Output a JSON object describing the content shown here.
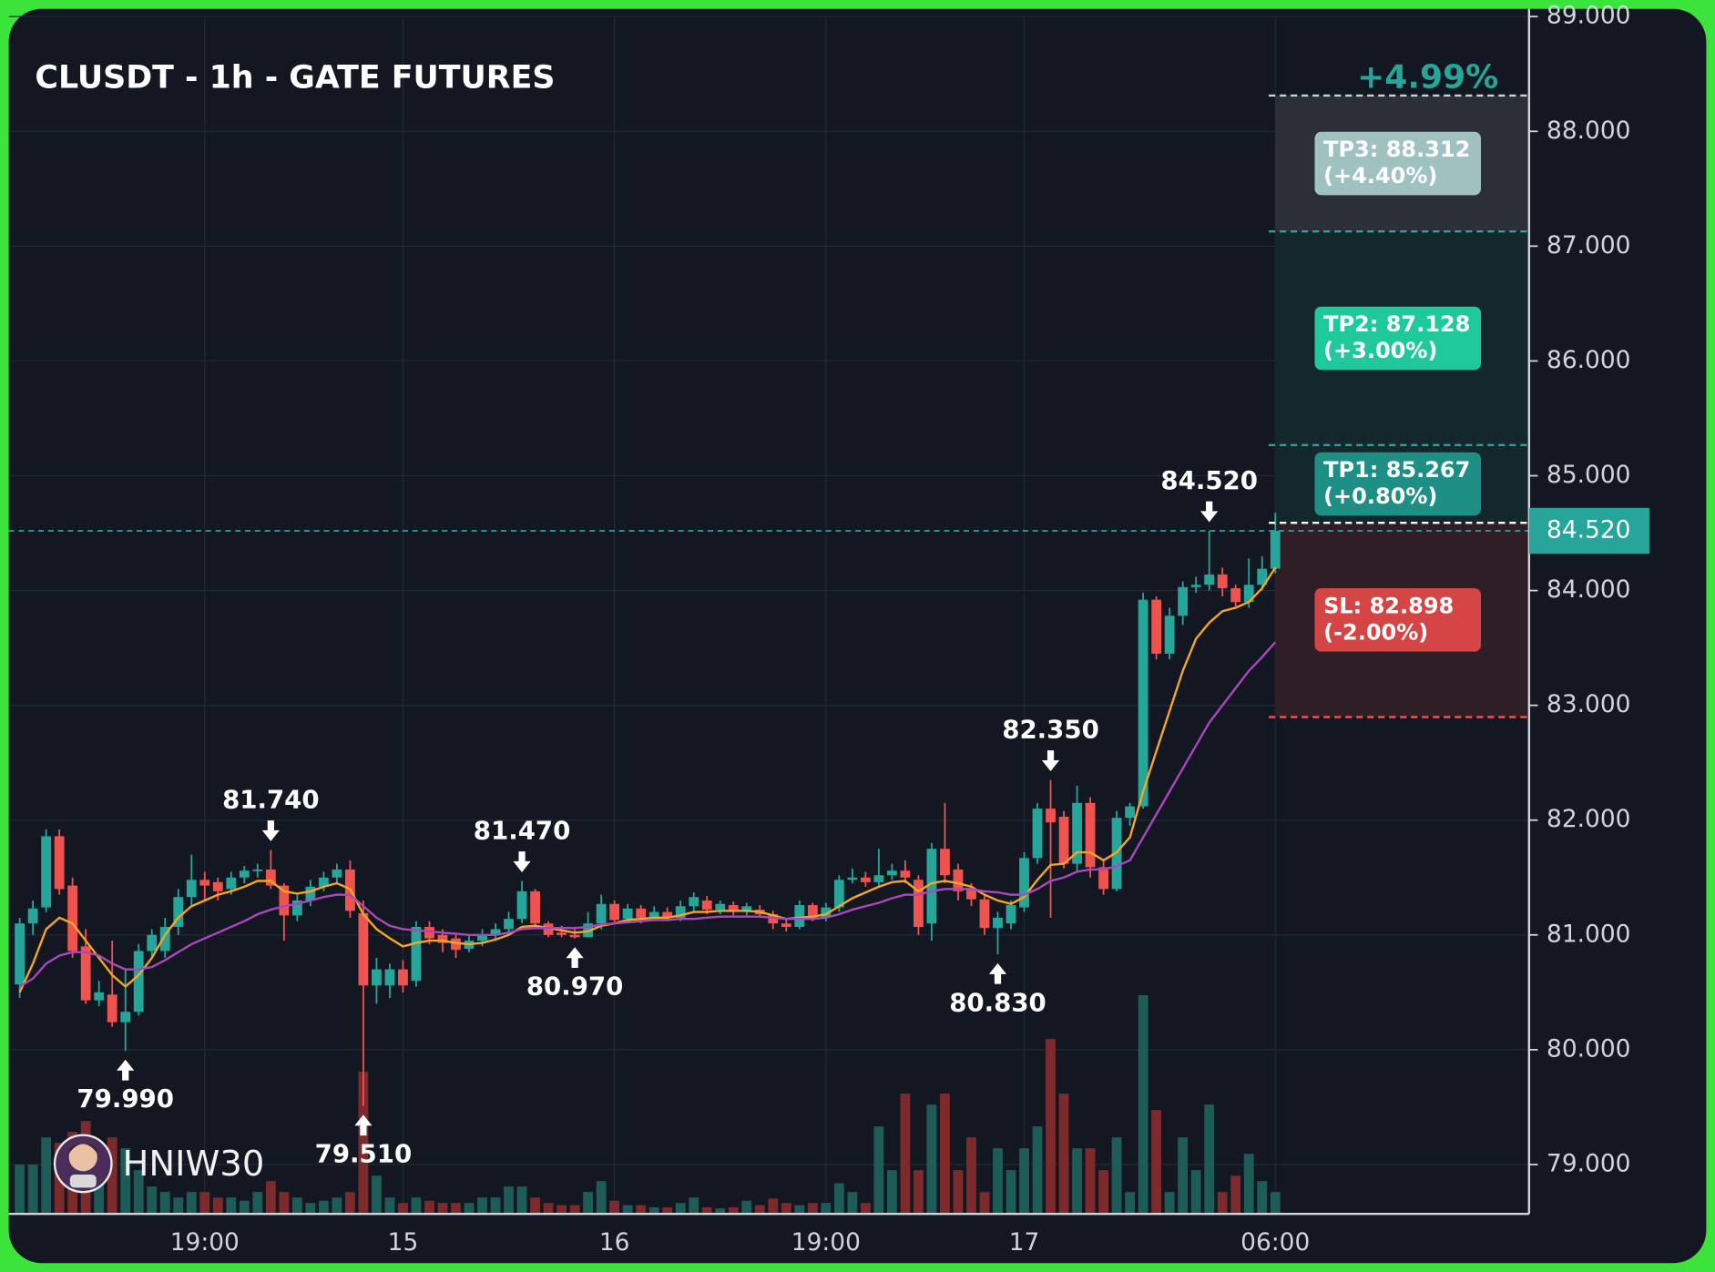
{
  "chart_data": {
    "type": "candlestick",
    "title": "CLUSDT - 1h - GATE FUTURES",
    "watermark": "HNIW30",
    "gain_label": "+4.99%",
    "categories": [
      null,
      null,
      null,
      null,
      null,
      null,
      null,
      null,
      null,
      null,
      null,
      null,
      null,
      null,
      "19:00",
      null,
      null,
      null,
      null,
      null,
      null,
      null,
      null,
      null,
      null,
      null,
      null,
      null,
      null,
      "15",
      null,
      null,
      null,
      null,
      null,
      null,
      null,
      null,
      null,
      null,
      null,
      null,
      null,
      null,
      null,
      "16",
      null,
      null,
      null,
      null,
      null,
      null,
      null,
      null,
      null,
      null,
      null,
      null,
      null,
      null,
      null,
      "19:00",
      null,
      null,
      null,
      null,
      null,
      null,
      null,
      null,
      null,
      null,
      null,
      null,
      null,
      null,
      "17",
      null,
      null,
      null,
      null,
      null,
      null,
      null,
      null,
      null,
      null,
      null,
      null,
      null,
      null,
      null,
      null,
      null,
      null,
      "06:00"
    ],
    "open": [
      80.57,
      81.1,
      81.24,
      81.86,
      81.43,
      80.9,
      80.43,
      80.48,
      80.24,
      80.33,
      80.86,
      80.86,
      81.07,
      81.33,
      81.48,
      81.46,
      81.4,
      81.5,
      81.56,
      81.57,
      81.43,
      81.17,
      81.3,
      81.42,
      81.5,
      81.57,
      81.19,
      80.56,
      80.56,
      80.7,
      80.6,
      81.07,
      81.0,
      80.97,
      80.88,
      80.95,
      81.0,
      81.05,
      81.14,
      81.38,
      81.1,
      81.02,
      81.0,
      80.98,
      81.1,
      81.27,
      81.14,
      81.23,
      81.15,
      81.2,
      81.15,
      81.25,
      81.3,
      81.22,
      81.26,
      81.2,
      81.22,
      81.18,
      81.1,
      81.07,
      81.26,
      81.15,
      81.24,
      81.48,
      81.5,
      81.46,
      81.52,
      81.56,
      81.48,
      81.1,
      81.75,
      81.57,
      81.4,
      81.31,
      81.06,
      81.1,
      81.24,
      81.67,
      82.1,
      82.03,
      81.62,
      82.15,
      81.59,
      81.4,
      82.02,
      82.12,
      83.92,
      83.45,
      83.78,
      84.03,
      84.05,
      84.14,
      84.02,
      83.9,
      84.05,
      84.19
    ],
    "high": [
      81.15,
      81.3,
      81.92,
      81.92,
      81.5,
      81.05,
      80.6,
      80.95,
      80.7,
      80.92,
      81.05,
      81.15,
      81.4,
      81.7,
      81.55,
      81.5,
      81.55,
      81.6,
      81.62,
      81.74,
      81.45,
      81.35,
      81.48,
      81.55,
      81.62,
      81.65,
      81.3,
      80.8,
      80.75,
      80.78,
      81.12,
      81.12,
      81.05,
      81.0,
      81.0,
      81.05,
      81.1,
      81.2,
      81.47,
      81.4,
      81.12,
      81.08,
      81.05,
      81.2,
      81.35,
      81.3,
      81.27,
      81.26,
      81.25,
      81.24,
      81.3,
      81.37,
      81.34,
      81.3,
      81.29,
      81.28,
      81.26,
      81.21,
      81.14,
      81.3,
      81.28,
      81.28,
      81.52,
      81.58,
      81.55,
      81.75,
      81.62,
      81.65,
      81.52,
      81.8,
      82.15,
      81.62,
      81.45,
      81.35,
      81.2,
      81.3,
      81.72,
      82.15,
      82.35,
      82.08,
      82.3,
      82.2,
      81.65,
      82.08,
      82.15,
      83.98,
      83.95,
      83.85,
      84.08,
      84.12,
      84.52,
      84.2,
      84.05,
      84.28,
      84.3,
      84.68
    ],
    "low": [
      80.45,
      81.0,
      81.2,
      81.35,
      80.8,
      80.4,
      80.38,
      80.2,
      79.99,
      80.3,
      80.8,
      80.8,
      81.0,
      81.25,
      81.3,
      81.3,
      81.35,
      81.45,
      81.5,
      81.4,
      80.95,
      81.12,
      81.25,
      81.38,
      81.45,
      81.15,
      79.51,
      80.4,
      80.45,
      80.5,
      80.55,
      80.92,
      80.85,
      80.8,
      80.85,
      80.9,
      80.95,
      81.0,
      81.1,
      81.05,
      80.98,
      80.98,
      80.97,
      80.98,
      81.05,
      81.1,
      81.1,
      81.1,
      81.12,
      81.12,
      81.12,
      81.2,
      81.18,
      81.18,
      81.17,
      81.17,
      81.15,
      81.05,
      81.03,
      81.05,
      81.12,
      81.12,
      81.2,
      81.45,
      81.42,
      81.42,
      81.48,
      81.45,
      81.0,
      80.95,
      81.45,
      81.3,
      81.25,
      81.0,
      80.83,
      81.05,
      81.2,
      81.62,
      81.15,
      81.58,
      81.55,
      81.5,
      81.35,
      81.38,
      81.95,
      82.1,
      83.4,
      83.4,
      83.7,
      83.98,
      84.0,
      83.95,
      83.85,
      83.85,
      84.0,
      84.15
    ],
    "close": [
      81.1,
      81.23,
      81.86,
      81.4,
      80.86,
      80.43,
      80.5,
      80.24,
      80.33,
      80.86,
      81.0,
      81.07,
      81.33,
      81.48,
      81.43,
      81.38,
      81.5,
      81.56,
      81.57,
      81.43,
      81.17,
      81.3,
      81.42,
      81.5,
      81.57,
      81.21,
      80.56,
      80.7,
      80.7,
      80.56,
      81.07,
      80.97,
      80.93,
      80.87,
      80.95,
      81.0,
      81.05,
      81.14,
      81.38,
      81.1,
      81.0,
      81.0,
      80.98,
      81.1,
      81.27,
      81.13,
      81.23,
      81.15,
      81.2,
      81.15,
      81.25,
      81.33,
      81.22,
      81.27,
      81.2,
      81.25,
      81.18,
      81.1,
      81.07,
      81.26,
      81.15,
      81.24,
      81.48,
      81.5,
      81.46,
      81.52,
      81.56,
      81.5,
      81.07,
      81.75,
      81.52,
      81.38,
      81.31,
      81.06,
      81.15,
      81.26,
      81.67,
      82.1,
      81.98,
      81.62,
      82.15,
      81.59,
      81.4,
      82.02,
      82.12,
      83.92,
      83.45,
      83.78,
      84.03,
      84.05,
      84.14,
      84.02,
      83.9,
      84.05,
      84.19,
      84.52
    ],
    "volume": [
      45,
      45,
      70,
      65,
      75,
      85,
      50,
      70,
      60,
      40,
      25,
      20,
      15,
      20,
      20,
      15,
      15,
      12,
      20,
      30,
      20,
      15,
      10,
      12,
      15,
      20,
      130,
      35,
      15,
      10,
      15,
      12,
      10,
      10,
      10,
      15,
      15,
      25,
      25,
      15,
      10,
      8,
      8,
      20,
      30,
      12,
      8,
      8,
      6,
      6,
      10,
      15,
      6,
      5,
      6,
      12,
      8,
      14,
      10,
      8,
      10,
      10,
      28,
      20,
      10,
      80,
      40,
      110,
      40,
      100,
      110,
      40,
      70,
      20,
      60,
      40,
      60,
      80,
      160,
      110,
      60,
      60,
      40,
      70,
      20,
      200,
      95,
      20,
      70,
      40,
      100,
      20,
      35,
      55,
      30,
      20
    ],
    "up_color": "#26a69a",
    "down_color": "#ef5350",
    "volume_up_color": "#1d5c57",
    "volume_down_color": "#7c2a2c",
    "moving_averages": [
      {
        "color": "#f5a623",
        "values": [
          80.5,
          80.75,
          81.05,
          81.15,
          81.1,
          80.95,
          80.8,
          80.65,
          80.55,
          80.65,
          80.8,
          81.0,
          81.15,
          81.25,
          81.3,
          81.35,
          81.38,
          81.42,
          81.47,
          81.47,
          81.38,
          81.36,
          81.38,
          81.42,
          81.45,
          81.4,
          81.18,
          81.05,
          80.97,
          80.9,
          80.93,
          80.95,
          80.95,
          80.93,
          80.92,
          80.93,
          80.96,
          81.0,
          81.07,
          81.08,
          81.06,
          81.04,
          81.02,
          81.03,
          81.08,
          81.1,
          81.13,
          81.14,
          81.15,
          81.15,
          81.17,
          81.2,
          81.2,
          81.21,
          81.21,
          81.21,
          81.2,
          81.17,
          81.14,
          81.15,
          81.16,
          81.18,
          81.25,
          81.32,
          81.37,
          81.42,
          81.46,
          81.47,
          81.38,
          81.45,
          81.47,
          81.45,
          81.42,
          81.35,
          81.3,
          81.27,
          81.33,
          81.48,
          81.61,
          81.62,
          81.72,
          81.72,
          81.65,
          81.72,
          81.85,
          82.25,
          82.6,
          82.95,
          83.3,
          83.58,
          83.72,
          83.82,
          83.85,
          83.9,
          84.02,
          84.2
        ]
      },
      {
        "color": "#ab47bc",
        "values": [
          80.55,
          80.62,
          80.75,
          80.82,
          80.85,
          80.85,
          80.82,
          80.75,
          80.7,
          80.7,
          80.72,
          80.78,
          80.85,
          80.92,
          80.97,
          81.02,
          81.07,
          81.12,
          81.18,
          81.22,
          81.25,
          81.27,
          81.3,
          81.33,
          81.35,
          81.35,
          81.25,
          81.15,
          81.08,
          81.05,
          81.04,
          81.03,
          81.02,
          81.01,
          81.0,
          81.0,
          81.0,
          81.02,
          81.05,
          81.06,
          81.06,
          81.06,
          81.06,
          81.07,
          81.09,
          81.1,
          81.11,
          81.12,
          81.13,
          81.13,
          81.14,
          81.14,
          81.15,
          81.16,
          81.16,
          81.16,
          81.16,
          81.15,
          81.14,
          81.14,
          81.14,
          81.15,
          81.18,
          81.22,
          81.25,
          81.28,
          81.32,
          81.35,
          81.35,
          81.38,
          81.4,
          81.4,
          81.4,
          81.38,
          81.37,
          81.35,
          81.35,
          81.4,
          81.47,
          81.5,
          81.55,
          81.57,
          81.57,
          81.6,
          81.65,
          81.85,
          82.05,
          82.25,
          82.45,
          82.65,
          82.85,
          83.0,
          83.15,
          83.3,
          83.42,
          83.55
        ]
      }
    ],
    "annotations": [
      {
        "value": 84.52,
        "label": "84.520"
      },
      {
        "value": 82.35,
        "label": "82.350"
      },
      {
        "value": 81.74,
        "label": "81.740"
      },
      {
        "value": 81.47,
        "label": "81.470"
      },
      {
        "value": 79.99,
        "label": "79.990"
      },
      {
        "value": 79.51,
        "label": "79.510"
      },
      {
        "value": 80.97,
        "label": "80.970"
      },
      {
        "value": 80.83,
        "label": "80.830"
      }
    ],
    "last_price": {
      "value": 84.52,
      "label": "84.520"
    },
    "entry": 84.59,
    "levels": [
      {
        "label": "TP3: 88.312",
        "pct": "(+4.40%)",
        "value": 88.312,
        "color": "#9fc2c1",
        "line_color": "#c8d2d6",
        "zone_color": "#2a2f38"
      },
      {
        "label": "TP2: 87.128",
        "pct": "(+3.00%)",
        "value": 87.128,
        "color": "#1fc99b",
        "line_color": "#26a69a",
        "zone_color": "#13272c"
      },
      {
        "label": "TP1: 85.267",
        "pct": "(+0.80%)",
        "value": 85.267,
        "color": "#1e8f85",
        "line_color": "#26a69a",
        "zone_color": "#12282d"
      },
      {
        "label": "SL: 82.898",
        "pct": "(-2.00%)",
        "value": 82.898,
        "color": "#d64545",
        "line_color": "#ef5350",
        "zone_color": "#2f1e26"
      }
    ],
    "ylim": [
      78.57,
      89.0
    ],
    "yticks": [
      {
        "value": 89,
        "label": "89.000"
      },
      {
        "value": 88,
        "label": "88.000"
      },
      {
        "value": 87,
        "label": "87.000"
      },
      {
        "value": 86,
        "label": "86.000"
      },
      {
        "value": 85,
        "label": "85.000"
      },
      {
        "value": 84,
        "label": "84.000"
      },
      {
        "value": 83,
        "label": "83.000"
      },
      {
        "value": 82,
        "label": "82.000"
      },
      {
        "value": 81,
        "label": "81.000"
      },
      {
        "value": 80,
        "label": "80.000"
      },
      {
        "value": 79,
        "label": "79.000"
      }
    ],
    "grid": true
  }
}
